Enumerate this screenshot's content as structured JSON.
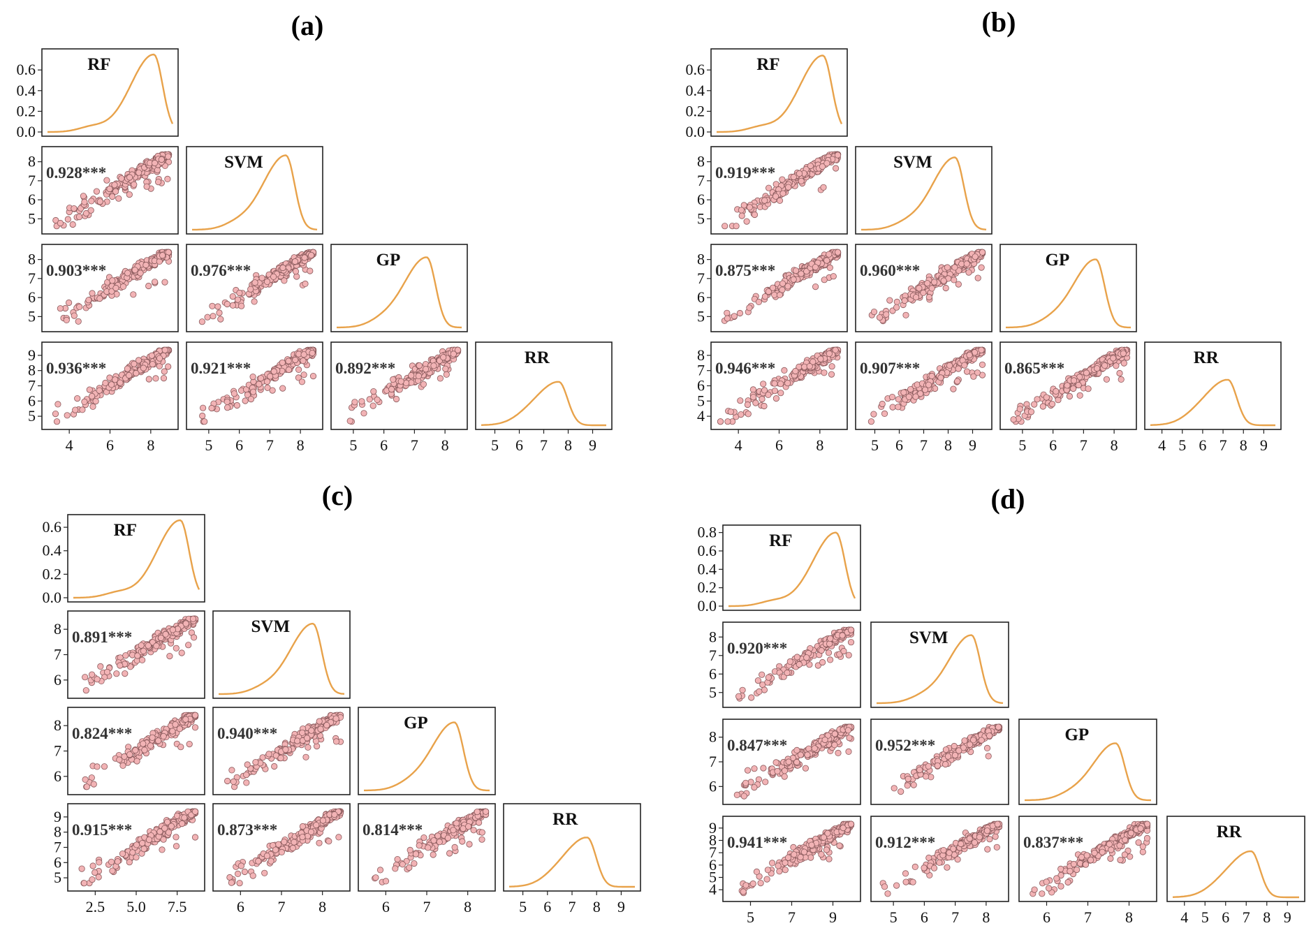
{
  "chart_data": [
    {
      "panel": "(a)",
      "type": "pairplot",
      "models": [
        "RF",
        "SVM",
        "GP",
        "RR"
      ],
      "diag_ylim": [
        0,
        0.75
      ],
      "diag_yticks": [
        "0.0",
        "0.2",
        "0.4",
        "0.6"
      ],
      "density_peaks": [
        0.75,
        0.72,
        0.68,
        0.42
      ],
      "row_yticks": [
        [
          "5",
          "6",
          "7",
          "8"
        ],
        [
          "5",
          "6",
          "7",
          "8"
        ],
        [
          "5",
          "6",
          "7",
          "8",
          "9"
        ]
      ],
      "col_xticks": [
        [
          "4",
          "6",
          "8"
        ],
        [
          "5",
          "6",
          "7",
          "8"
        ],
        [
          "5",
          "6",
          "7",
          "8"
        ],
        [
          "5",
          "6",
          "7",
          "8",
          "9"
        ]
      ],
      "correlations": [
        {
          "row": "SVM",
          "col": "RF",
          "r": "0.928***"
        },
        {
          "row": "GP",
          "col": "RF",
          "r": "0.903***"
        },
        {
          "row": "GP",
          "col": "SVM",
          "r": "0.976***"
        },
        {
          "row": "RR",
          "col": "RF",
          "r": "0.936***"
        },
        {
          "row": "RR",
          "col": "SVM",
          "r": "0.921***"
        },
        {
          "row": "RR",
          "col": "GP",
          "r": "0.892***"
        }
      ]
    },
    {
      "panel": "(b)",
      "type": "pairplot",
      "models": [
        "RF",
        "SVM",
        "GP",
        "RR"
      ],
      "diag_ylim": [
        0,
        0.75
      ],
      "diag_yticks": [
        "0.0",
        "0.2",
        "0.4",
        "0.6"
      ],
      "density_peaks": [
        0.74,
        0.7,
        0.66,
        0.44
      ],
      "row_yticks": [
        [
          "5",
          "6",
          "7",
          "8"
        ],
        [
          "5",
          "6",
          "7",
          "8"
        ],
        [
          "4",
          "5",
          "6",
          "7",
          "8"
        ]
      ],
      "col_xticks": [
        [
          "4",
          "6",
          "8"
        ],
        [
          "5",
          "6",
          "7",
          "8",
          "9"
        ],
        [
          "5",
          "6",
          "7",
          "8"
        ],
        [
          "4",
          "5",
          "6",
          "7",
          "8",
          "9"
        ]
      ],
      "correlations": [
        {
          "row": "SVM",
          "col": "RF",
          "r": "0.919***"
        },
        {
          "row": "GP",
          "col": "RF",
          "r": "0.875***"
        },
        {
          "row": "GP",
          "col": "SVM",
          "r": "0.960***"
        },
        {
          "row": "RR",
          "col": "RF",
          "r": "0.946***"
        },
        {
          "row": "RR",
          "col": "SVM",
          "r": "0.907***"
        },
        {
          "row": "RR",
          "col": "GP",
          "r": "0.865***"
        }
      ]
    },
    {
      "panel": "(c)",
      "type": "pairplot",
      "models": [
        "RF",
        "SVM",
        "GP",
        "RR"
      ],
      "diag_ylim": [
        0,
        0.66
      ],
      "diag_yticks": [
        "0.0",
        "0.2",
        "0.4",
        "0.6"
      ],
      "density_peaks": [
        0.66,
        0.6,
        0.58,
        0.42
      ],
      "row_yticks": [
        [
          "6",
          "7",
          "8"
        ],
        [
          "6",
          "7",
          "8"
        ],
        [
          "5",
          "6",
          "7",
          "8",
          "9"
        ]
      ],
      "col_xticks": [
        [
          "2.5",
          "5.0",
          "7.5"
        ],
        [
          "6",
          "7",
          "8"
        ],
        [
          "6",
          "7",
          "8"
        ],
        [
          "5",
          "6",
          "7",
          "8",
          "9"
        ]
      ],
      "correlations": [
        {
          "row": "SVM",
          "col": "RF",
          "r": "0.891***"
        },
        {
          "row": "GP",
          "col": "RF",
          "r": "0.824***"
        },
        {
          "row": "GP",
          "col": "SVM",
          "r": "0.940***"
        },
        {
          "row": "RR",
          "col": "RF",
          "r": "0.915***"
        },
        {
          "row": "RR",
          "col": "SVM",
          "r": "0.873***"
        },
        {
          "row": "RR",
          "col": "GP",
          "r": "0.814***"
        }
      ]
    },
    {
      "panel": "(d)",
      "type": "pairplot",
      "models": [
        "RF",
        "SVM",
        "GP",
        "RR"
      ],
      "diag_ylim": [
        0,
        0.82
      ],
      "diag_yticks": [
        "0.0",
        "0.2",
        "0.4",
        "0.6",
        "0.8"
      ],
      "density_peaks": [
        0.8,
        0.74,
        0.62,
        0.5
      ],
      "row_yticks": [
        [
          "5",
          "6",
          "7",
          "8"
        ],
        [
          "6",
          "7",
          "8"
        ],
        [
          "4",
          "5",
          "6",
          "7",
          "8",
          "9"
        ]
      ],
      "col_xticks": [
        [
          "5",
          "7",
          "9"
        ],
        [
          "5",
          "6",
          "7",
          "8"
        ],
        [
          "6",
          "7",
          "8"
        ],
        [
          "4",
          "5",
          "6",
          "7",
          "8",
          "9"
        ]
      ],
      "correlations": [
        {
          "row": "SVM",
          "col": "RF",
          "r": "0.920***"
        },
        {
          "row": "GP",
          "col": "RF",
          "r": "0.847***"
        },
        {
          "row": "GP",
          "col": "SVM",
          "r": "0.952***"
        },
        {
          "row": "RR",
          "col": "RF",
          "r": "0.941***"
        },
        {
          "row": "RR",
          "col": "SVM",
          "r": "0.912***"
        },
        {
          "row": "RR",
          "col": "GP",
          "r": "0.837***"
        }
      ]
    }
  ],
  "colors": {
    "density_line": "#e8a24a",
    "scatter_fill": "#f2b3b5",
    "scatter_edge": "#8a5a5c",
    "frame": "#222222"
  }
}
